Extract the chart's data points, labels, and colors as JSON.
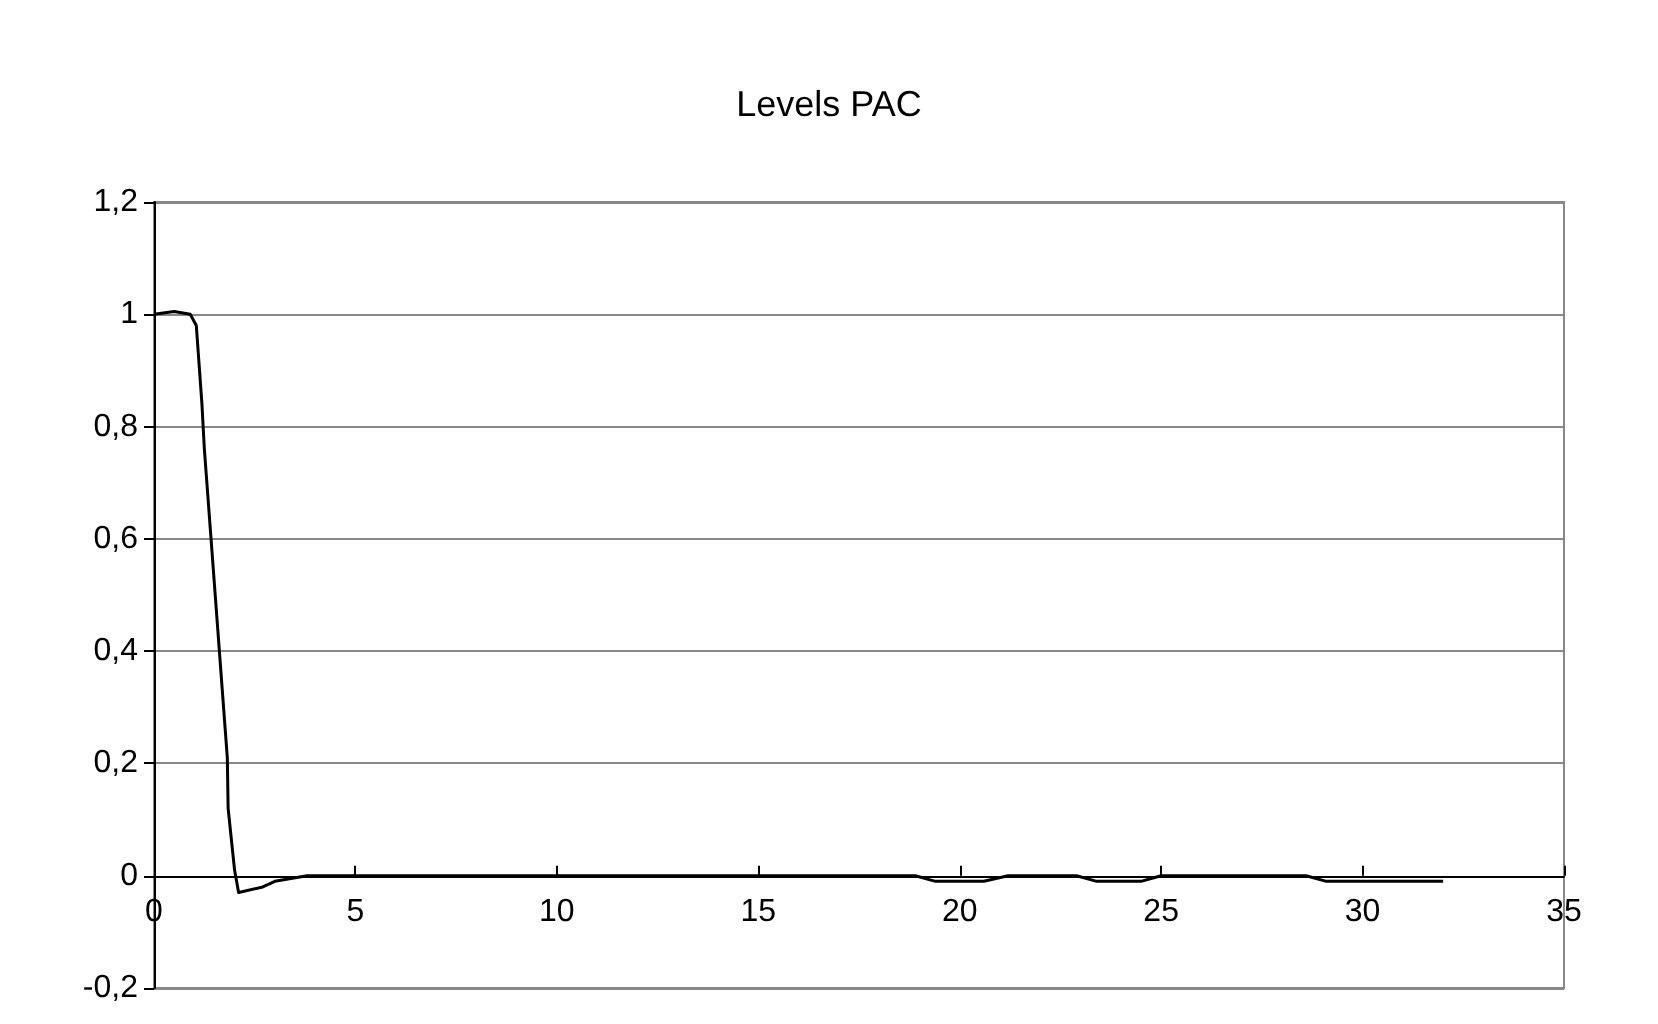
{
  "chart_data": {
    "type": "line",
    "title": "Levels PAC",
    "x": [
      0,
      0.5,
      0.9,
      1.05,
      1.19,
      1.25,
      1.82,
      1.84,
      2.0,
      2.1,
      2.7,
      3.0,
      3.8,
      7.0,
      7.4,
      17.5,
      18,
      18.9,
      19.4,
      20.6,
      21.2,
      22.9,
      23.4,
      24.5,
      25,
      28.6,
      29.1,
      31,
      32
    ],
    "series": [
      {
        "color": "#000000",
        "values": [
          1,
          1.005,
          1.0,
          0.98,
          0.84,
          0.76,
          0.21,
          0.12,
          0.01,
          -0.03,
          -0.02,
          -0.01,
          0,
          0,
          0,
          0,
          0,
          0,
          -0.01,
          -0.01,
          0,
          0,
          -0.01,
          -0.01,
          0,
          0,
          -0.01,
          -0.01,
          -0.01
        ]
      }
    ],
    "xlim": [
      0,
      35
    ],
    "xticks": [
      0,
      5,
      10,
      15,
      20,
      25,
      30,
      35
    ],
    "ylim": [
      -0.2,
      1.2
    ],
    "yticks": [
      {
        "value": -0.2,
        "label": "-0,2"
      },
      0,
      {
        "value": 0.2,
        "label": "0,2"
      },
      {
        "value": 0.4,
        "label": "0,4"
      },
      {
        "value": 0.6,
        "label": "0,6"
      },
      {
        "value": 0.8,
        "label": "0,8"
      },
      1,
      {
        "value": 1.2,
        "label": "1,2"
      }
    ],
    "grid": "y",
    "marker": "none",
    "line_style": "solid"
  }
}
